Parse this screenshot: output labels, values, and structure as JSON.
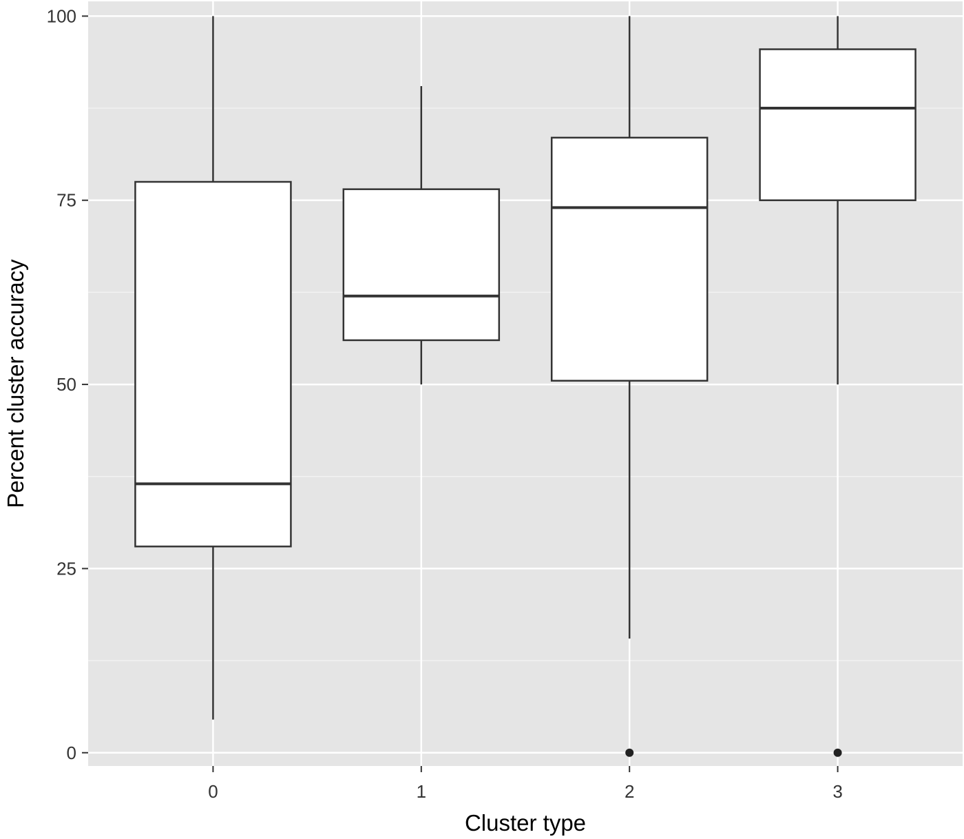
{
  "chart_data": {
    "type": "boxplot",
    "title": "",
    "xlabel": "Cluster type",
    "ylabel": "Percent cluster accuracy",
    "ylim": [
      -1.8,
      102
    ],
    "yticks": [
      0,
      25,
      50,
      75,
      100
    ],
    "grid": true,
    "legend": "none",
    "categories": [
      "0",
      "1",
      "2",
      "3"
    ],
    "boxes": [
      {
        "category": "0",
        "whisker_low": 4.5,
        "q1": 28.0,
        "median": 36.5,
        "q3": 77.5,
        "whisker_high": 100.0,
        "outliers": []
      },
      {
        "category": "1",
        "whisker_low": 50.0,
        "q1": 56.0,
        "median": 62.0,
        "q3": 76.5,
        "whisker_high": 90.5,
        "outliers": []
      },
      {
        "category": "2",
        "whisker_low": 15.5,
        "q1": 50.5,
        "median": 74.0,
        "q3": 83.5,
        "whisker_high": 100.0,
        "outliers": [
          0
        ]
      },
      {
        "category": "3",
        "whisker_low": 50.0,
        "q1": 75.0,
        "median": 87.5,
        "q3": 95.5,
        "whisker_high": 100.0,
        "outliers": [
          0
        ]
      }
    ],
    "colors": {
      "panel": "#e5e5e5",
      "grid_major": "#ffffff",
      "grid_minor": "#f2f2f2",
      "box_fill": "#ffffff",
      "box_stroke": "#333333",
      "whisker": "#333333",
      "outlier": "#222222"
    }
  }
}
